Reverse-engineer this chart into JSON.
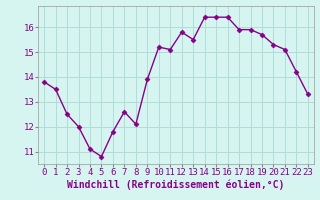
{
  "x": [
    0,
    1,
    2,
    3,
    4,
    5,
    6,
    7,
    8,
    9,
    10,
    11,
    12,
    13,
    14,
    15,
    16,
    17,
    18,
    19,
    20,
    21,
    22,
    23
  ],
  "y": [
    13.8,
    13.5,
    12.5,
    12.0,
    11.1,
    10.8,
    11.8,
    12.6,
    12.1,
    13.9,
    15.2,
    15.1,
    15.8,
    15.5,
    16.4,
    16.4,
    16.4,
    15.9,
    15.9,
    15.7,
    15.3,
    15.1,
    14.2,
    13.3
  ],
  "line_color": "#880088",
  "marker": "D",
  "marker_size": 2.5,
  "bg_color": "#d6f5f0",
  "grid_color": "#b0ddd8",
  "xlabel": "Windchill (Refroidissement éolien,°C)",
  "xlabel_color": "#880088",
  "tick_color": "#880088",
  "ylabel_ticks": [
    11,
    12,
    13,
    14,
    15,
    16
  ],
  "xlim": [
    -0.5,
    23.5
  ],
  "ylim": [
    10.5,
    16.85
  ],
  "tick_fontsize": 6.5,
  "xlabel_fontsize": 7,
  "linewidth": 1.0
}
